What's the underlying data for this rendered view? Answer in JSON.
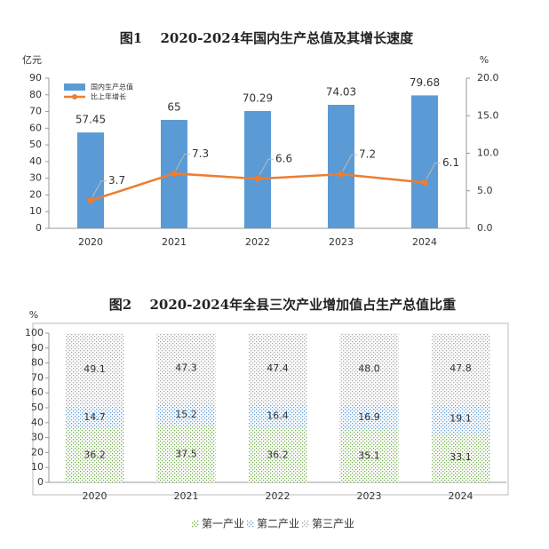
{
  "chart_data": [
    {
      "type": "combo",
      "title": "图1　 2020-2024年国内生产总值及其增长速度",
      "y_label": "亿元",
      "y2_label": "%",
      "categories": [
        "2020",
        "2021",
        "2022",
        "2023",
        "2024"
      ],
      "series": [
        {
          "name": "国内生产总值",
          "color": "#5b9bd5",
          "values": [
            57.45,
            65,
            70.29,
            74.03,
            79.68
          ]
        },
        {
          "name": "比上年增长",
          "color": "#ed7d31",
          "axis": "y2",
          "values": [
            3.7,
            7.3,
            6.6,
            7.2,
            6.1
          ]
        }
      ],
      "ylim": [
        0,
        90
      ],
      "yticks": [
        0,
        10,
        20,
        30,
        40,
        50,
        60,
        70,
        80,
        90
      ],
      "y2lim": [
        0,
        20
      ],
      "y2ticks": [
        {
          "value": 0,
          "label": "0.0"
        },
        {
          "value": 5,
          "label": "5.0"
        },
        {
          "value": 10,
          "label": "10.0"
        },
        {
          "value": 15,
          "label": "15.0"
        },
        {
          "value": 20,
          "label": "20.0"
        }
      ],
      "legend": "upper-left"
    },
    {
      "type": "stacked_bar",
      "title": "图2　 2020-2024年全县三次产业增加值占生产总值比重",
      "y_label": "%",
      "categories": [
        "2020",
        "2021",
        "2022",
        "2023",
        "2024"
      ],
      "series": [
        {
          "name": "第一产业",
          "color": "#70ad47",
          "values": [
            36.2,
            37.5,
            36.2,
            35.1,
            33.1
          ]
        },
        {
          "name": "第二产业",
          "color": "#5b9bd5",
          "values": [
            14.7,
            15.2,
            16.4,
            16.9,
            19.1
          ]
        },
        {
          "name": "第三产业",
          "color": "#a5a5a5",
          "values": [
            49.1,
            47.3,
            47.4,
            48.0,
            47.8
          ],
          "value_labels": [
            "49.1",
            "47.3",
            "47.4",
            "48.0",
            "47.8"
          ]
        }
      ],
      "ylim": [
        0,
        100
      ],
      "yticks": [
        0,
        10,
        20,
        30,
        40,
        50,
        60,
        70,
        80,
        90,
        100
      ],
      "legend": "bottom"
    }
  ]
}
